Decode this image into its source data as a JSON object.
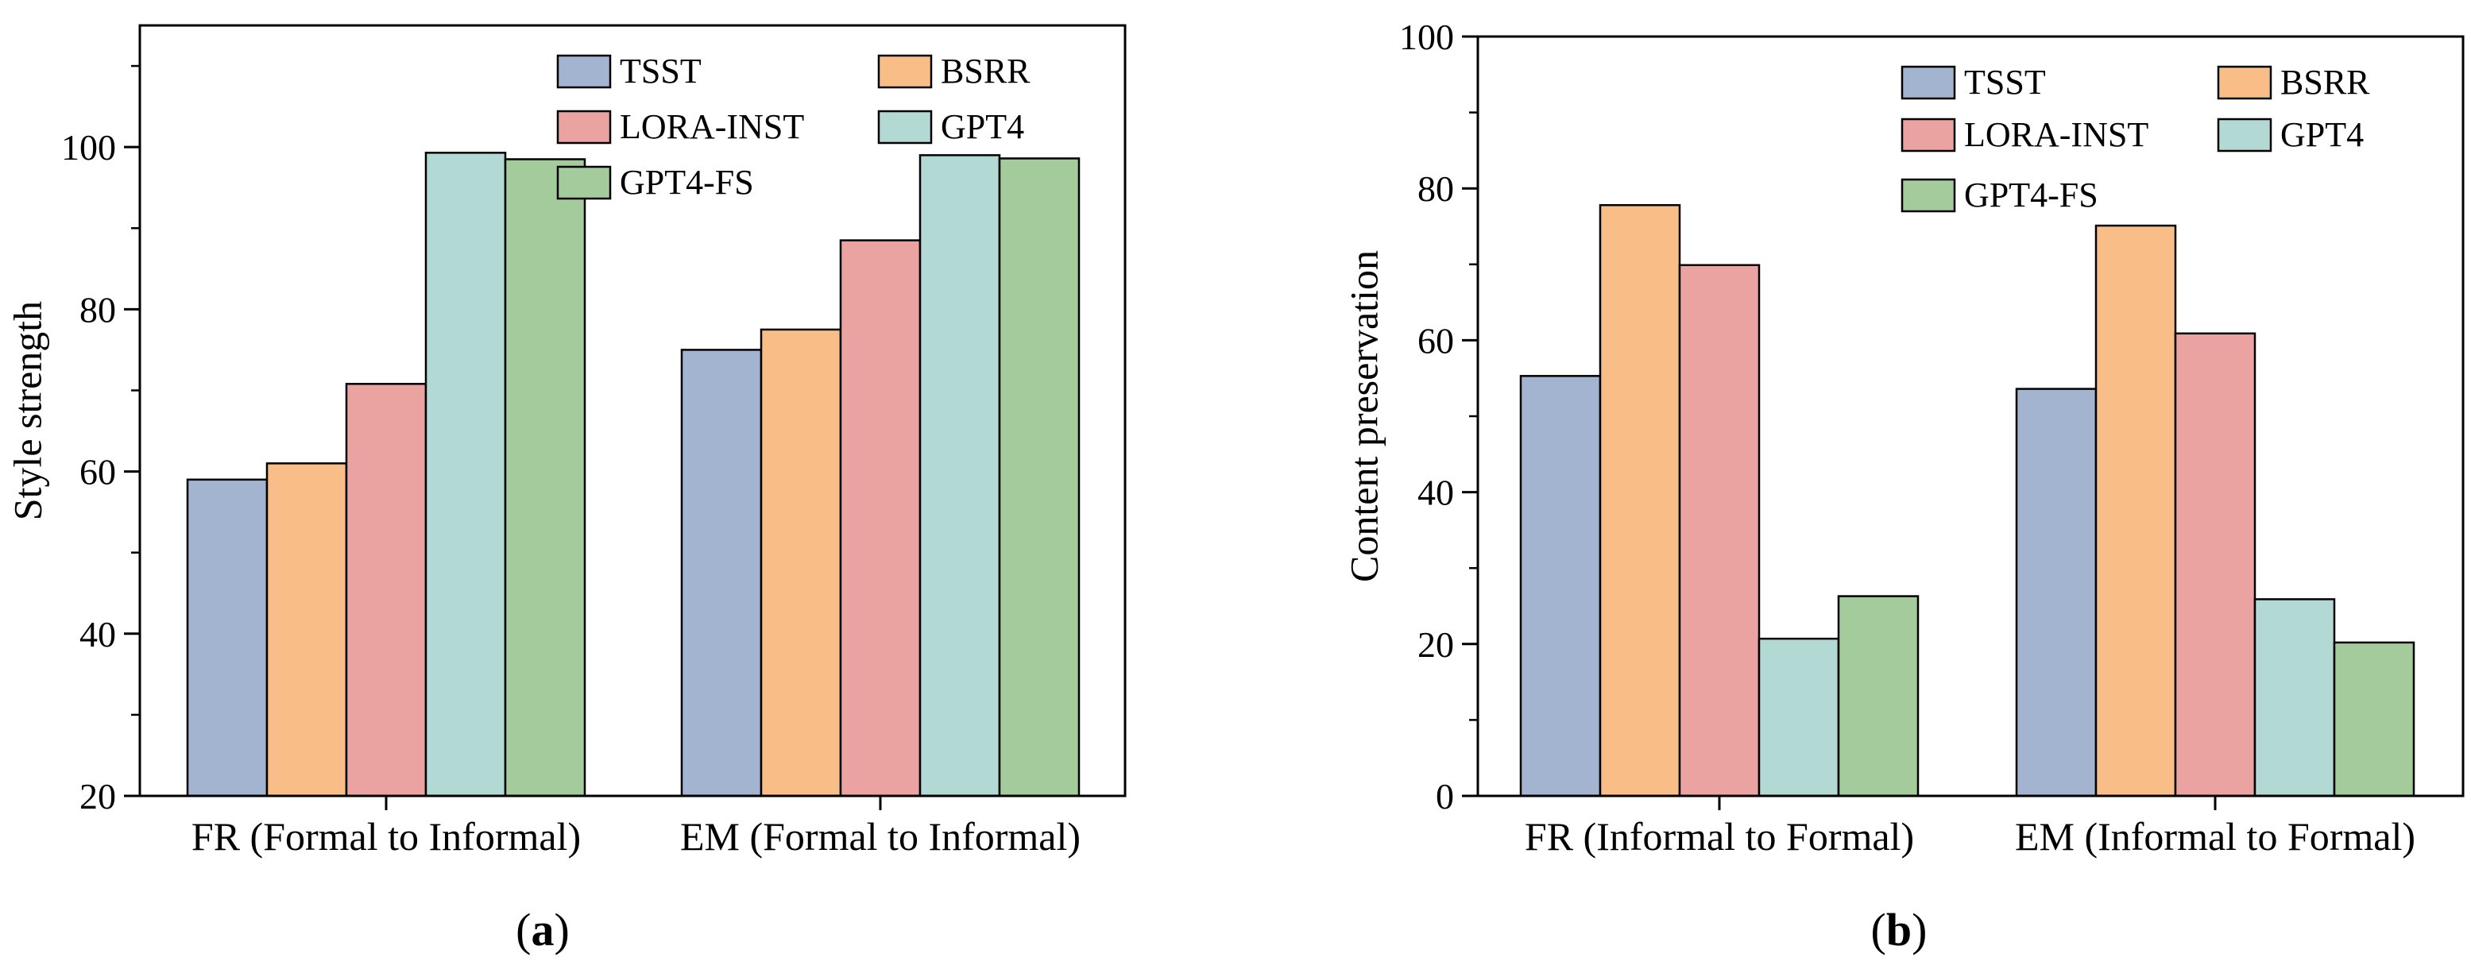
{
  "chart_data": [
    {
      "type": "bar",
      "panel_label": "a",
      "categories": [
        "FR (Formal to Informal)",
        "EM (Formal to Informal)"
      ],
      "series": [
        {
          "name": "TSST",
          "color": "#a2b4cf",
          "values": [
            59.0,
            75.0
          ]
        },
        {
          "name": "BSRR",
          "color": "#f9bd87",
          "values": [
            61.0,
            77.5
          ]
        },
        {
          "name": "LORA-INST",
          "color": "#eba3a2",
          "values": [
            70.8,
            88.5
          ]
        },
        {
          "name": "GPT4",
          "color": "#b3d9d4",
          "values": [
            99.3,
            99.0
          ]
        },
        {
          "name": "GPT4-FS",
          "color": "#a4cb9b",
          "values": [
            98.5,
            98.6
          ]
        }
      ],
      "xlabel": "",
      "ylabel": "Style strength",
      "ylim": [
        20,
        115
      ],
      "yticks": [
        20,
        40,
        60,
        80,
        100
      ],
      "legend_position": "top-right",
      "grid": false
    },
    {
      "type": "bar",
      "panel_label": "b",
      "categories": [
        "FR (Informal to Formal)",
        "EM (Informal to Formal)"
      ],
      "series": [
        {
          "name": "TSST",
          "color": "#a2b4cf",
          "values": [
            55.3,
            53.6
          ]
        },
        {
          "name": "BSRR",
          "color": "#f9bd87",
          "values": [
            77.8,
            75.1
          ]
        },
        {
          "name": "LORA-INST",
          "color": "#eba3a2",
          "values": [
            69.9,
            60.9
          ]
        },
        {
          "name": "GPT4",
          "color": "#b3d9d4",
          "values": [
            20.7,
            25.9
          ]
        },
        {
          "name": "GPT4-FS",
          "color": "#a4cb9b",
          "values": [
            26.3,
            20.2
          ]
        }
      ],
      "xlabel": "",
      "ylabel": "Content preservation",
      "ylim": [
        0,
        100
      ],
      "yticks": [
        0,
        20,
        40,
        60,
        80,
        100
      ],
      "legend_position": "top-right",
      "grid": false
    }
  ]
}
